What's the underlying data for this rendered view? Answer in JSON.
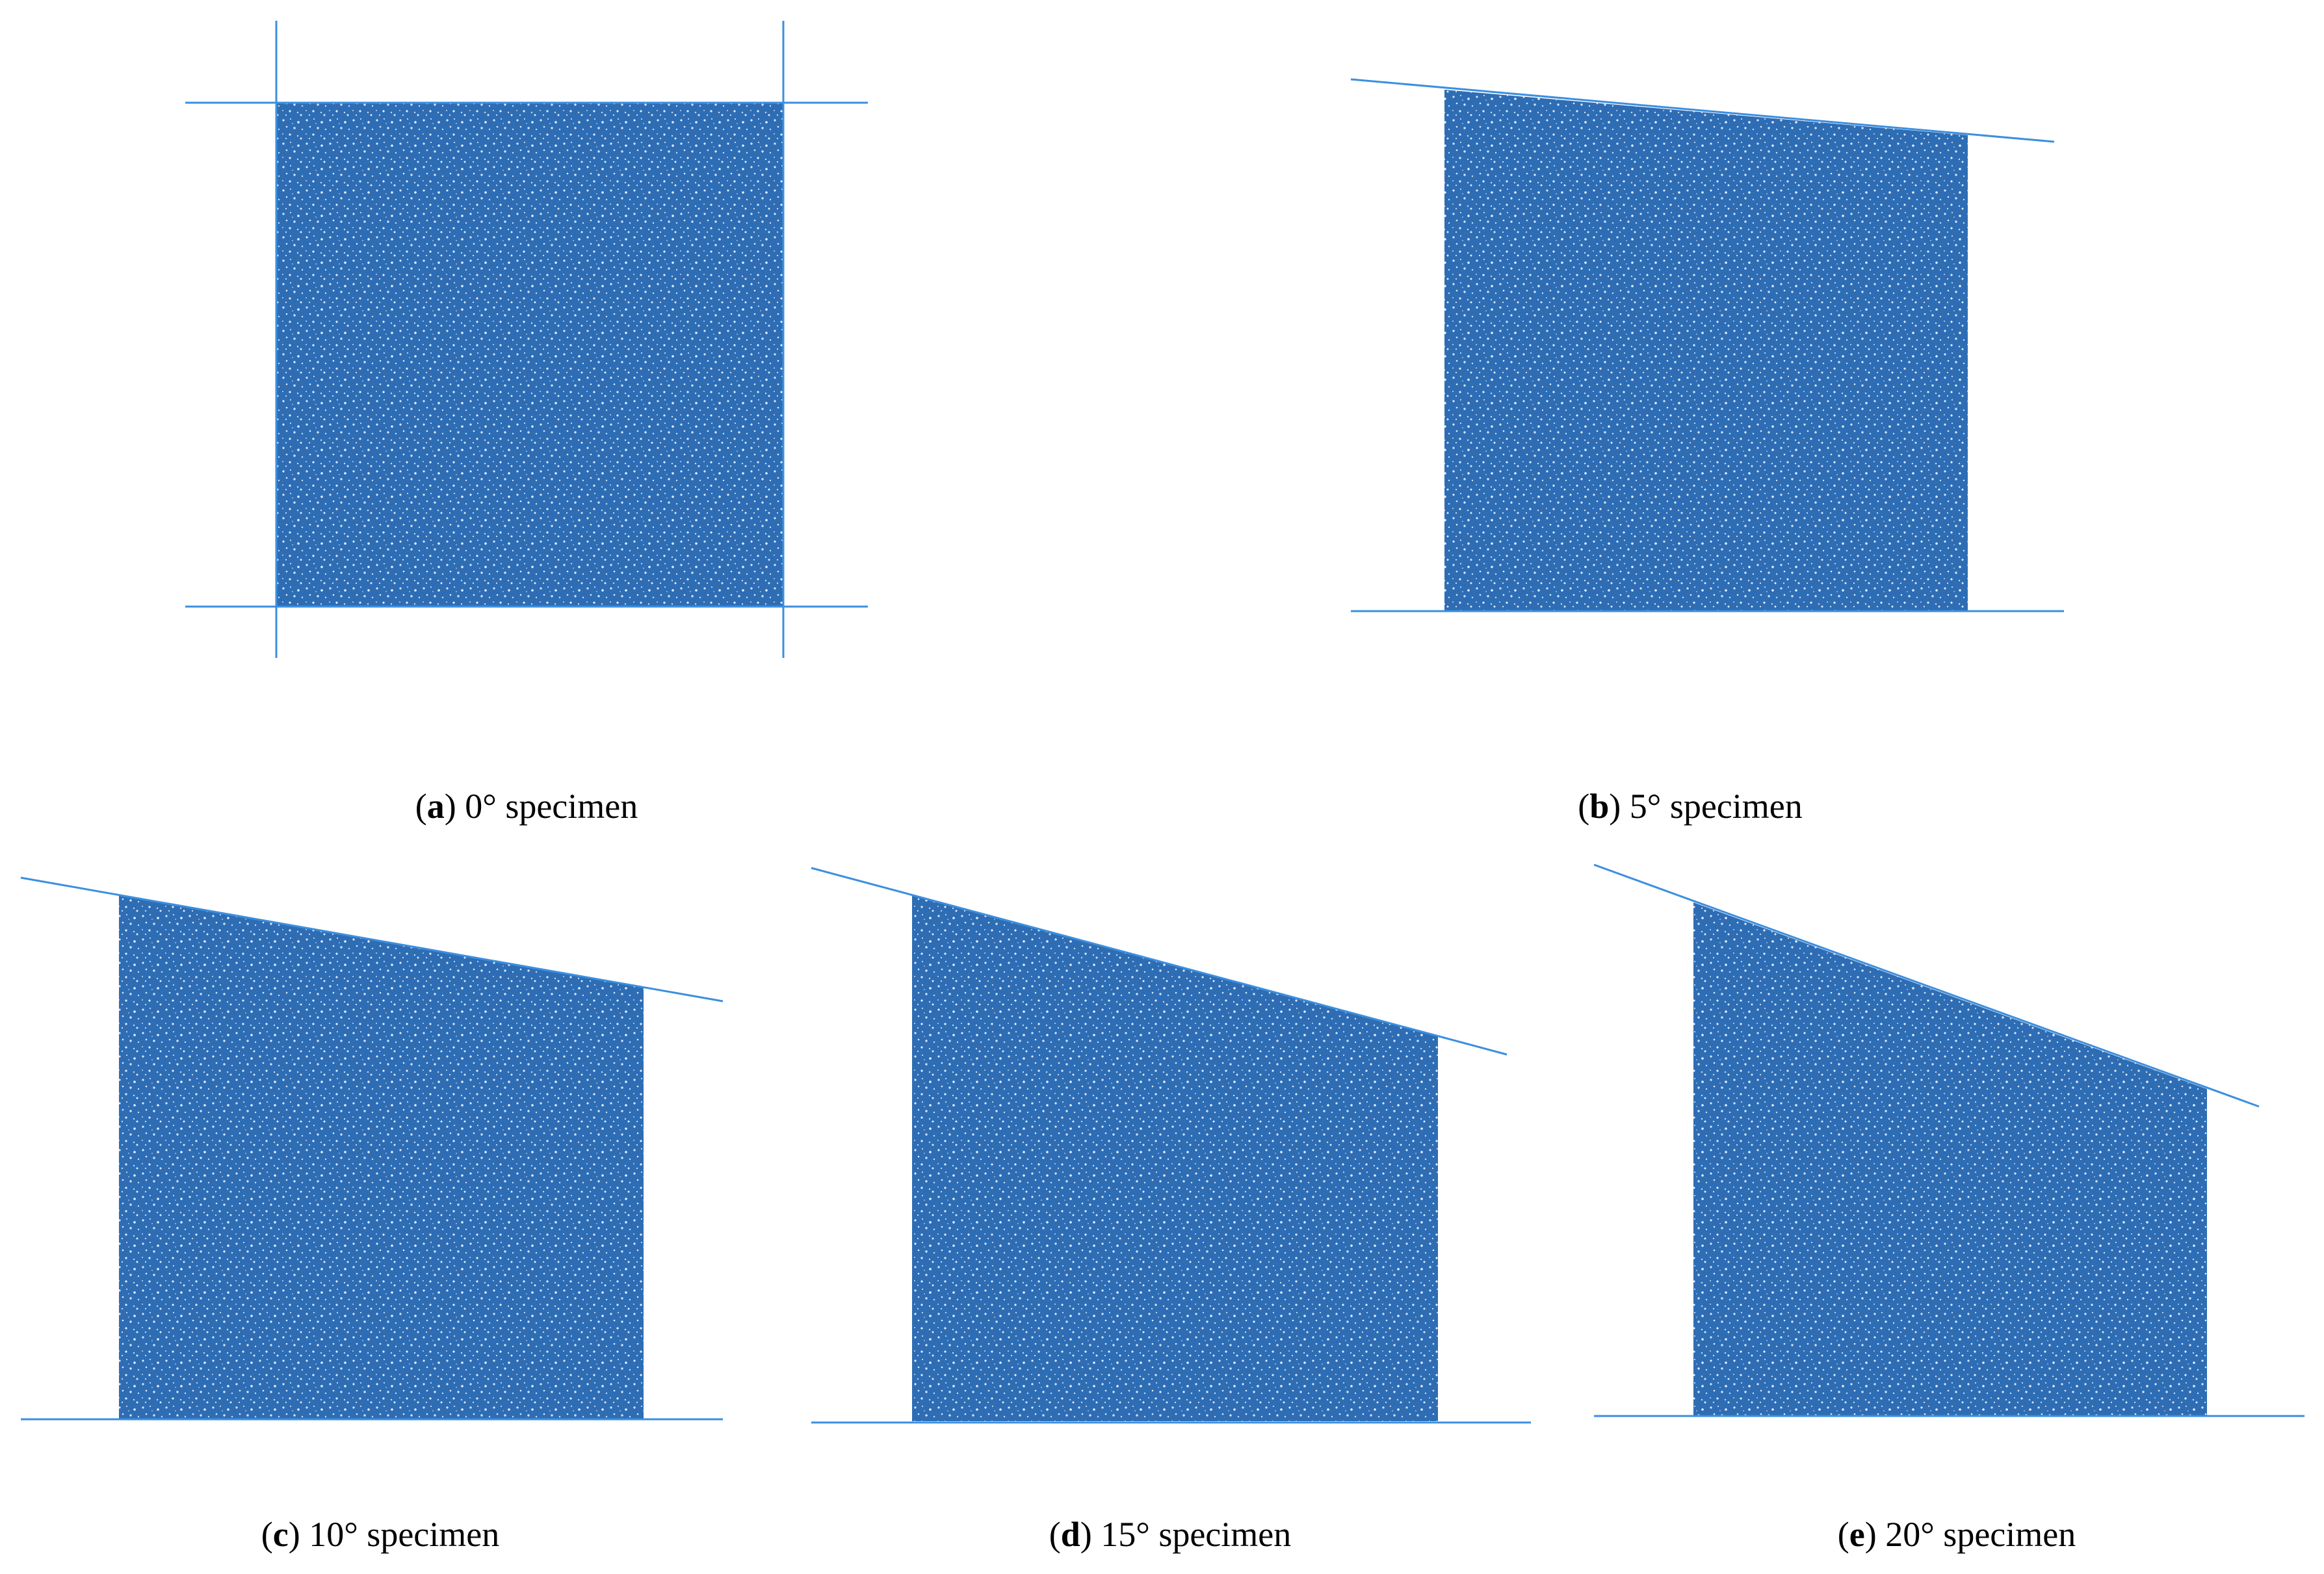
{
  "figure": {
    "colors": {
      "specimen_fill": "#2e6db4",
      "boundary_line": "#3b8fe0",
      "background": "#ffffff"
    },
    "panels": [
      {
        "id": "a",
        "letter": "a",
        "label": " 0° specimen",
        "angle_deg": 0
      },
      {
        "id": "b",
        "letter": "b",
        "label": " 5° specimen",
        "angle_deg": 5
      },
      {
        "id": "c",
        "letter": "c",
        "label": " 10° specimen",
        "angle_deg": 10
      },
      {
        "id": "d",
        "letter": "d",
        "label": " 15° specimen",
        "angle_deg": 15
      },
      {
        "id": "e",
        "letter": "e",
        "label": " 20° specimen",
        "angle_deg": 20
      }
    ]
  }
}
